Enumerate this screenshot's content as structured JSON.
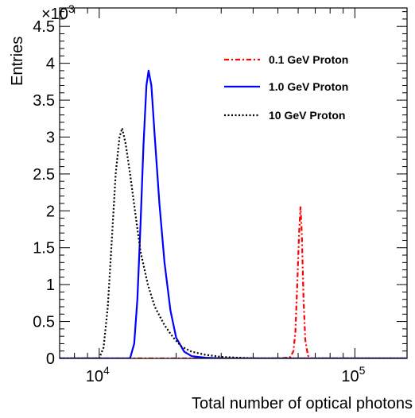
{
  "chart_data": {
    "type": "line",
    "xlabel": "Total number of optical photons",
    "ylabel": "Entries",
    "y_multiplier_base": "×10",
    "y_multiplier_exp": "3",
    "x_scale": "log",
    "xlim": [
      7000,
      160000
    ],
    "ylim": [
      0,
      4.75
    ],
    "x_ticks": [
      {
        "value": 10000,
        "base": "10",
        "exp": "4"
      },
      {
        "value": 100000,
        "base": "10",
        "exp": "5"
      }
    ],
    "y_ticks": [
      {
        "value": 0,
        "label": "0"
      },
      {
        "value": 0.5,
        "label": "0.5"
      },
      {
        "value": 1,
        "label": "1"
      },
      {
        "value": 1.5,
        "label": "1.5"
      },
      {
        "value": 2,
        "label": "2"
      },
      {
        "value": 2.5,
        "label": "2.5"
      },
      {
        "value": 3,
        "label": "3"
      },
      {
        "value": 3.5,
        "label": "3.5"
      },
      {
        "value": 4,
        "label": "4"
      },
      {
        "value": 4.5,
        "label": "4.5"
      }
    ],
    "legend_position": "top-right",
    "series": [
      {
        "name": "0.1 GeV Proton",
        "color": "#ff0000",
        "dash": "dash-dot",
        "points": [
          [
            7000,
            0
          ],
          [
            52000,
            0
          ],
          [
            56000,
            0.02
          ],
          [
            57500,
            0.1
          ],
          [
            58500,
            0.35
          ],
          [
            59500,
            1.0
          ],
          [
            60500,
            1.7
          ],
          [
            61300,
            2.05
          ],
          [
            62000,
            1.7
          ],
          [
            63000,
            0.8
          ],
          [
            64000,
            0.25
          ],
          [
            65500,
            0.04
          ],
          [
            67000,
            0
          ],
          [
            160000,
            0
          ]
        ]
      },
      {
        "name": "1.0 GeV Proton",
        "color": "#0000ff",
        "dash": "solid",
        "points": [
          [
            7000,
            0
          ],
          [
            13200,
            0
          ],
          [
            13700,
            0.2
          ],
          [
            14100,
            0.8
          ],
          [
            14500,
            1.8
          ],
          [
            14900,
            2.9
          ],
          [
            15300,
            3.7
          ],
          [
            15600,
            3.9
          ],
          [
            16000,
            3.7
          ],
          [
            16500,
            3.0
          ],
          [
            17200,
            2.1
          ],
          [
            18000,
            1.3
          ],
          [
            19000,
            0.65
          ],
          [
            20000,
            0.28
          ],
          [
            21500,
            0.09
          ],
          [
            23000,
            0.03
          ],
          [
            26000,
            0.01
          ],
          [
            30000,
            0
          ],
          [
            160000,
            0
          ]
        ]
      },
      {
        "name": "10 GeV Proton",
        "color": "#000000",
        "dash": "dotted",
        "points": [
          [
            7000,
            0
          ],
          [
            10000,
            0
          ],
          [
            10400,
            0.15
          ],
          [
            10800,
            0.7
          ],
          [
            11200,
            1.6
          ],
          [
            11600,
            2.5
          ],
          [
            12000,
            3.0
          ],
          [
            12300,
            3.12
          ],
          [
            12700,
            2.9
          ],
          [
            13200,
            2.5
          ],
          [
            13800,
            2.0
          ],
          [
            14500,
            1.45
          ],
          [
            15500,
            1.0
          ],
          [
            16500,
            0.7
          ],
          [
            18000,
            0.45
          ],
          [
            19500,
            0.28
          ],
          [
            21000,
            0.16
          ],
          [
            23000,
            0.09
          ],
          [
            26000,
            0.05
          ],
          [
            30000,
            0.02
          ],
          [
            35000,
            0.01
          ],
          [
            42000,
            0
          ],
          [
            160000,
            0
          ]
        ]
      }
    ]
  }
}
